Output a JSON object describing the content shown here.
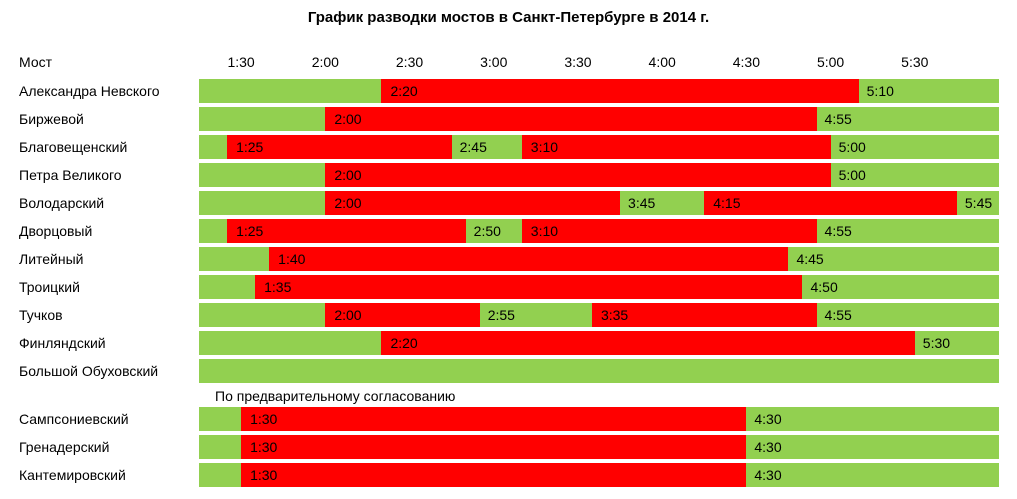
{
  "chart_data": {
    "type": "gantt",
    "title": "График разводки мостов в Санкт-Петербурге в 2014 г.",
    "header_label": "Мост",
    "x_ticks": [
      "1:30",
      "2:00",
      "2:30",
      "3:00",
      "3:30",
      "4:00",
      "4:30",
      "5:00",
      "5:30"
    ],
    "x_range": [
      "1:15",
      "6:00"
    ],
    "colors": {
      "open": "#ff0000",
      "closed": "#92d050"
    },
    "section_note": "По предварительному согласованию",
    "rows": [
      {
        "bridge": "Александра Невского",
        "intervals": [
          {
            "start": "2:20",
            "end": "5:10"
          }
        ]
      },
      {
        "bridge": "Биржевой",
        "intervals": [
          {
            "start": "2:00",
            "end": "4:55"
          }
        ]
      },
      {
        "bridge": "Благовещенский",
        "intervals": [
          {
            "start": "1:25",
            "end": "2:45"
          },
          {
            "start": "3:10",
            "end": "5:00"
          }
        ]
      },
      {
        "bridge": "Петра Великого",
        "intervals": [
          {
            "start": "2:00",
            "end": "5:00"
          }
        ]
      },
      {
        "bridge": "Володарский",
        "intervals": [
          {
            "start": "2:00",
            "end": "3:45"
          },
          {
            "start": "4:15",
            "end": "5:45"
          }
        ]
      },
      {
        "bridge": "Дворцовый",
        "intervals": [
          {
            "start": "1:25",
            "end": "2:50"
          },
          {
            "start": "3:10",
            "end": "4:55"
          }
        ]
      },
      {
        "bridge": "Литейный",
        "intervals": [
          {
            "start": "1:40",
            "end": "4:45"
          }
        ]
      },
      {
        "bridge": "Троицкий",
        "intervals": [
          {
            "start": "1:35",
            "end": "4:50"
          }
        ]
      },
      {
        "bridge": "Тучков",
        "intervals": [
          {
            "start": "2:00",
            "end": "2:55"
          },
          {
            "start": "3:35",
            "end": "4:55"
          }
        ]
      },
      {
        "bridge": "Финляндский",
        "intervals": [
          {
            "start": "2:20",
            "end": "5:30"
          }
        ]
      },
      {
        "bridge": "Большой Обуховский",
        "intervals": []
      },
      {
        "bridge": "Сампсониевский",
        "intervals": [
          {
            "start": "1:30",
            "end": "4:30"
          }
        ]
      },
      {
        "bridge": "Гренадерский",
        "intervals": [
          {
            "start": "1:30",
            "end": "4:30"
          }
        ]
      },
      {
        "bridge": "Кантемировский",
        "intervals": [
          {
            "start": "1:30",
            "end": "4:30"
          }
        ]
      }
    ]
  }
}
